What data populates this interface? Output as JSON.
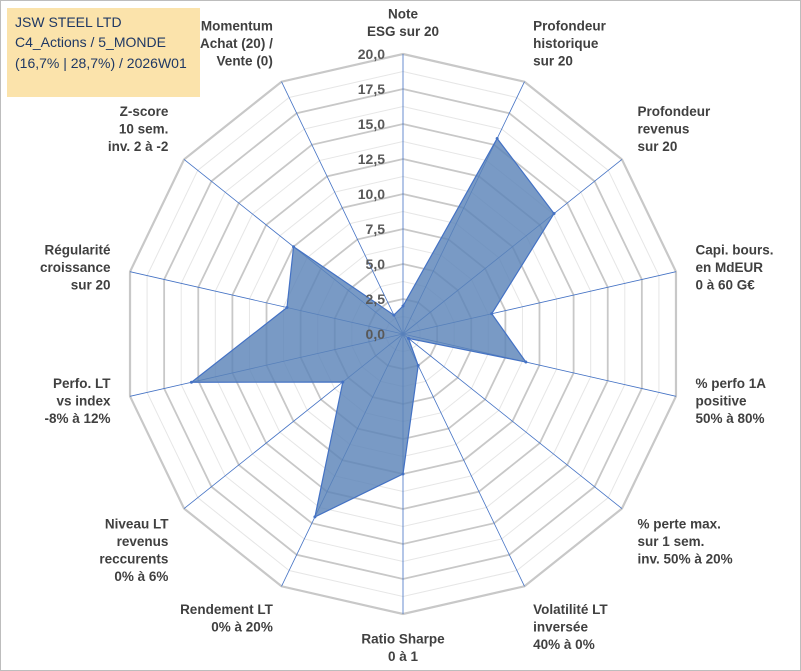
{
  "info_box": {
    "line1": "JSW STEEL LTD",
    "line2": "C4_Actions / 5_MONDE",
    "line3": "(16,7% | 28,7%) / 2026W01"
  },
  "colors": {
    "fill": "#5b84b8",
    "stroke": "#4472c4",
    "grid": "#c8c8c8",
    "spoke": "#4472c4",
    "text": "#404040",
    "tick": "#595959",
    "info_bg": "#fbe3ab",
    "info_text": "#1f3864"
  },
  "chart_data": {
    "type": "radar",
    "title": "",
    "rmin": 0,
    "rmax": 20,
    "tick_labels": [
      "0,0",
      "2,5",
      "5,0",
      "7,5",
      "10,0",
      "12,5",
      "15,0",
      "17,5",
      "20,0"
    ],
    "categories": [
      [
        "Note",
        "ESG sur 20"
      ],
      [
        "Profondeur",
        "historique",
        "sur 20"
      ],
      [
        "Profondeur",
        "revenus",
        "sur 20"
      ],
      [
        "Capi. bours.",
        "en MdEUR",
        "0 à 60 G€"
      ],
      [
        "% perfo 1A",
        "positive",
        "50% à 80%"
      ],
      [
        "% perte max.",
        "sur 1 sem.",
        "inv. 50% à 20%"
      ],
      [
        "Volatilité LT",
        "inversée",
        "40% à 0%"
      ],
      [
        "Ratio Sharpe",
        "0 à 1"
      ],
      [
        "Rendement LT",
        "0% à 20%"
      ],
      [
        "Niveau LT",
        "revenus",
        "reccurents",
        "0% à 6%"
      ],
      [
        "Perfo. LT",
        "vs index",
        "-8% à 12%"
      ],
      [
        "Régularité",
        "croissance",
        "sur 20"
      ],
      [
        "Z-score",
        "10 sem.",
        "inv. 2 à -2"
      ],
      [
        "Momentum",
        "Achat (20) /",
        "Vente (0)"
      ]
    ],
    "series": [
      {
        "name": "JSW STEEL LTD",
        "values": [
          2.0,
          15.5,
          13.8,
          6.5,
          9.0,
          0.5,
          2.5,
          10.0,
          14.5,
          5.5,
          15.5,
          8.5,
          10.0,
          1.5
        ]
      }
    ]
  }
}
